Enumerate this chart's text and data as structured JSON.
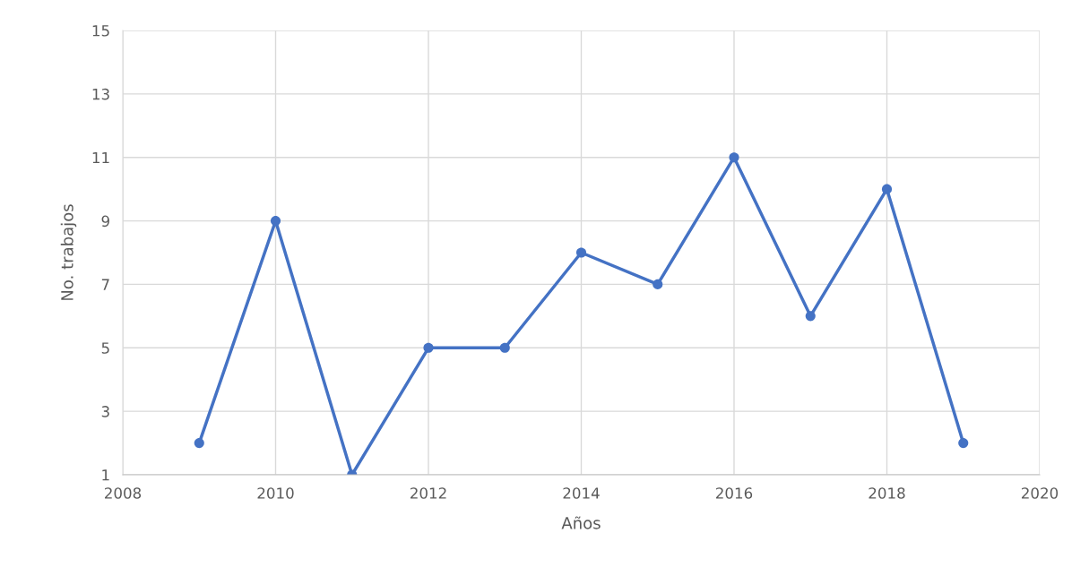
{
  "chart_data": {
    "type": "line",
    "xlabel": "Años",
    "ylabel": "No. trabajos",
    "x": [
      2009,
      2010,
      2011,
      2012,
      2013,
      2014,
      2015,
      2016,
      2017,
      2018,
      2019
    ],
    "series": [
      {
        "color": "#4472c4",
        "values": [
          2,
          9,
          1,
          5,
          5,
          8,
          7,
          11,
          6,
          10,
          2
        ]
      }
    ],
    "xlim": [
      2008,
      2020
    ],
    "xticks": [
      2008,
      2010,
      2012,
      2014,
      2016,
      2018,
      2020
    ],
    "ylim": [
      1,
      15
    ],
    "yticks": [
      1,
      3,
      5,
      7,
      9,
      11,
      13,
      15
    ],
    "grid": true,
    "marker": "circle",
    "line_style": "solid"
  }
}
